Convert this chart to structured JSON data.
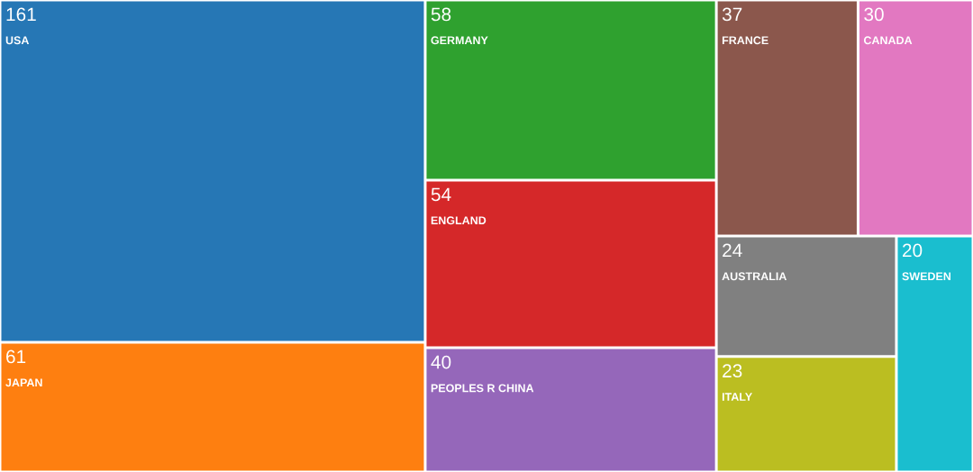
{
  "chart_data": {
    "type": "other",
    "categories": [
      "USA",
      "JAPAN",
      "GERMANY",
      "ENGLAND",
      "PEOPLES R CHINA",
      "FRANCE",
      "CANADA",
      "AUSTRALIA",
      "ITALY",
      "SWEDEN"
    ],
    "values": [
      161,
      61,
      58,
      54,
      40,
      37,
      30,
      24,
      23,
      20
    ],
    "colors": [
      "#2677b5",
      "#fe7f10",
      "#2fa12f",
      "#d52829",
      "#9567ba",
      "#8b574c",
      "#e278c1",
      "#808080",
      "#bbbe21",
      "#1abecf"
    ],
    "data_labels": true
  }
}
